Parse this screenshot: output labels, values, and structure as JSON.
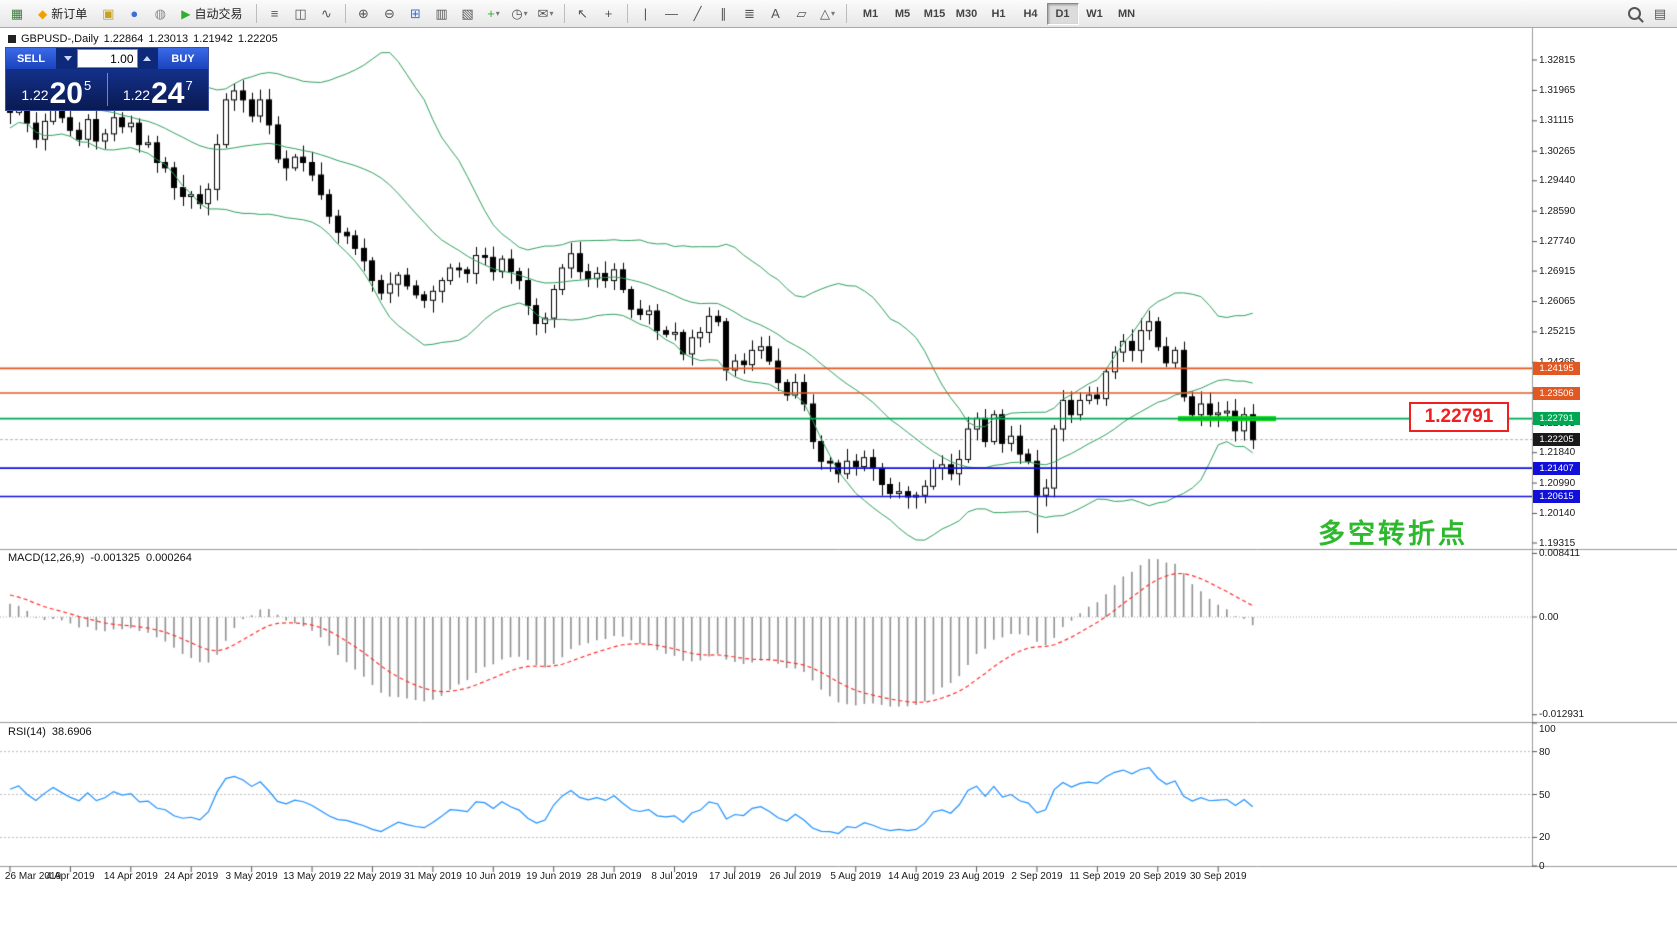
{
  "toolbar": {
    "items": [
      {
        "t": "icon",
        "n": "new-chart-icon",
        "g": "▦",
        "c": "#3b7d3b"
      },
      {
        "t": "button",
        "n": "new-order-button",
        "g": "◆",
        "c": "#f0a000",
        "label": "新订单"
      },
      {
        "t": "icon",
        "n": "chart-profile-icon",
        "g": "▣",
        "c": "#c8a020"
      },
      {
        "t": "icon",
        "n": "market-watch-icon",
        "g": "●",
        "c": "#3a6fd8"
      },
      {
        "t": "icon",
        "n": "data-window-icon",
        "g": "◍",
        "c": "#888888"
      },
      {
        "t": "button",
        "n": "auto-trading-button",
        "g": "▶",
        "c": "#2eaf2e",
        "label": "自动交易"
      },
      {
        "t": "sep"
      },
      {
        "t": "icon",
        "n": "bar-chart-icon",
        "g": "≡",
        "c": "#555555"
      },
      {
        "t": "icon",
        "n": "candlestick-chart-icon",
        "g": "◫",
        "c": "#555555"
      },
      {
        "t": "icon",
        "n": "line-chart-icon",
        "g": "∿",
        "c": "#555555"
      },
      {
        "t": "sep"
      },
      {
        "t": "icon",
        "n": "zoom-in-icon",
        "g": "⊕",
        "c": "#555555"
      },
      {
        "t": "icon",
        "n": "zoom-out-icon",
        "g": "⊖",
        "c": "#555555"
      },
      {
        "t": "icon",
        "n": "grid-icon",
        "g": "⊞",
        "c": "#3a6fd8"
      },
      {
        "t": "icon",
        "n": "tile-windows-icon",
        "g": "▥",
        "c": "#555555"
      },
      {
        "t": "icon",
        "n": "cascade-windows-icon",
        "g": "▧",
        "c": "#555555"
      },
      {
        "t": "icon-drop",
        "n": "add-indicator-icon",
        "g": "+",
        "c": "#2eaf2e"
      },
      {
        "t": "icon-drop",
        "n": "period-icon",
        "g": "◷",
        "c": "#555555"
      },
      {
        "t": "icon-drop",
        "n": "template-icon",
        "g": "✉",
        "c": "#555555"
      },
      {
        "t": "sep"
      },
      {
        "t": "icon",
        "n": "cursor-icon",
        "g": "↖",
        "c": "#555555"
      },
      {
        "t": "icon",
        "n": "crosshair-icon",
        "g": "+",
        "c": "#555555"
      },
      {
        "t": "sep"
      },
      {
        "t": "icon",
        "n": "vertical-line-icon",
        "g": "|",
        "c": "#555555"
      },
      {
        "t": "icon",
        "n": "horizontal-line-icon",
        "g": "—",
        "c": "#555555"
      },
      {
        "t": "icon",
        "n": "trendline-icon",
        "g": "╱",
        "c": "#555555"
      },
      {
        "t": "icon",
        "n": "channel-icon",
        "g": "∥",
        "c": "#555555"
      },
      {
        "t": "icon",
        "n": "fibonacci-icon",
        "g": "≣",
        "c": "#555555"
      },
      {
        "t": "icon",
        "n": "text-icon",
        "g": "A",
        "c": "#555555"
      },
      {
        "t": "icon",
        "n": "arrow-label-icon",
        "g": "▱",
        "c": "#555555"
      },
      {
        "t": "icon-drop",
        "n": "shapes-icon",
        "g": "△",
        "c": "#555555"
      },
      {
        "t": "sep"
      }
    ],
    "timeframes": [
      "M1",
      "M5",
      "M15",
      "M30",
      "H1",
      "H4",
      "D1",
      "W1",
      "MN"
    ],
    "active_timeframe": "D1",
    "right_items": [
      {
        "t": "search",
        "n": "search-icon"
      },
      {
        "t": "icon",
        "n": "quick-settings-icon",
        "g": "▤",
        "c": "#555555"
      }
    ]
  },
  "chart": {
    "title": "GBPUSD-,Daily",
    "ohlc": {
      "open": "1.22864",
      "high": "1.23013",
      "low": "1.21942",
      "close": "1.22205"
    }
  },
  "trade_panel": {
    "sell": "SELL",
    "buy": "BUY",
    "volume": "1.00",
    "sell_pre": "1.22",
    "sell_big": "20",
    "sell_sup": "5",
    "buy_pre": "1.22",
    "buy_big": "24",
    "buy_sup": "7"
  },
  "annotation": {
    "text": "多空转折点",
    "color": "#2EB82E"
  },
  "callout": {
    "text": "1.22791"
  },
  "chart_data": {
    "type": "candlestick",
    "symbol": "GBPUSD",
    "timeframe": "Daily",
    "x_labels": [
      "26 Mar 2019",
      "4 Apr 2019",
      "14 Apr 2019",
      "24 Apr 2019",
      "3 May 2019",
      "13 May 2019",
      "22 May 2019",
      "31 May 2019",
      "10 Jun 2019",
      "19 Jun 2019",
      "28 Jun 2019",
      "8 Jul 2019",
      "17 Jul 2019",
      "26 Jul 2019",
      "5 Aug 2019",
      "14 Aug 2019",
      "23 Aug 2019",
      "2 Sep 2019",
      "11 Sep 2019",
      "20 Sep 2019",
      "30 Sep 2019"
    ],
    "candles_per_label": 7,
    "pre_closes": [
      1.305,
      1.3085,
      1.312,
      1.3175,
      1.3235,
      1.328,
      1.3305,
      1.326,
      1.3205,
      1.323,
      1.3195,
      1.316,
      1.32,
      1.324,
      1.3215,
      1.3185,
      1.315,
      1.317,
      1.32,
      1.318
    ],
    "closes": [
      1.3135,
      1.316,
      1.3105,
      1.306,
      1.311,
      1.3155,
      1.312,
      1.3085,
      1.306,
      1.3115,
      1.3055,
      1.3075,
      1.312,
      1.3095,
      1.3105,
      1.3045,
      1.305,
      1.2995,
      1.298,
      1.2925,
      1.29,
      1.2905,
      1.288,
      1.292,
      1.3045,
      1.317,
      1.3195,
      1.317,
      1.3125,
      1.317,
      1.31,
      1.3005,
      1.298,
      1.301,
      1.2995,
      1.296,
      1.2905,
      1.2845,
      1.28,
      1.279,
      1.2755,
      1.272,
      1.2665,
      1.263,
      1.2655,
      1.268,
      1.265,
      1.2625,
      1.261,
      1.2635,
      1.2665,
      1.27,
      1.2695,
      1.2685,
      1.2735,
      1.273,
      1.269,
      1.2725,
      1.269,
      1.2665,
      1.2595,
      1.2545,
      1.256,
      1.264,
      1.27,
      1.274,
      1.269,
      1.267,
      1.2685,
      1.2665,
      1.2695,
      1.264,
      1.2585,
      1.257,
      1.258,
      1.2525,
      1.2515,
      1.252,
      1.246,
      1.2505,
      1.252,
      1.2565,
      1.255,
      1.2415,
      1.244,
      1.243,
      1.247,
      1.248,
      1.244,
      1.238,
      1.2345,
      1.238,
      1.232,
      1.2215,
      1.216,
      1.2155,
      1.2125,
      1.216,
      1.2145,
      1.217,
      1.214,
      1.2095,
      1.207,
      1.2075,
      1.206,
      1.2065,
      1.209,
      1.214,
      1.215,
      1.2125,
      1.2165,
      1.225,
      1.228,
      1.2215,
      1.229,
      1.221,
      1.223,
      1.218,
      1.216,
      1.2065,
      1.2085,
      1.225,
      1.233,
      1.229,
      1.233,
      1.2345,
      1.2335,
      1.241,
      1.2465,
      1.2495,
      1.247,
      1.2525,
      1.255,
      1.248,
      1.2435,
      1.247,
      1.234,
      1.229,
      1.232,
      1.229,
      1.2295,
      1.23,
      1.2245,
      1.229,
      1.222
    ],
    "wick_overrides": [
      {
        "i": 26,
        "high": 1.3215
      },
      {
        "i": 83,
        "low": 1.2385
      },
      {
        "i": 119,
        "low": 1.1959
      },
      {
        "i": 144,
        "low": 1.2194
      }
    ],
    "price_axis": {
      "labels": [
        "1.32815",
        "1.31965",
        "1.31115",
        "1.30265",
        "1.29440",
        "1.28590",
        "1.27740",
        "1.26915",
        "1.26065",
        "1.25215",
        "1.24365",
        "1.23515",
        "1.22665",
        "1.21840",
        "1.20990",
        "1.20140",
        "1.19315"
      ],
      "max": 1.32815,
      "min": 1.19315
    },
    "levels": [
      {
        "price": 1.24195,
        "label": "1.24195",
        "color": "#E25822",
        "type": "resistance-upper"
      },
      {
        "price": 1.23506,
        "label": "1.23506",
        "color": "#E25822",
        "type": "resistance-lower"
      },
      {
        "price": 1.22791,
        "label": "1.22791",
        "color": "#00A651",
        "type": "pivot",
        "highlight": true
      },
      {
        "price": 1.22205,
        "label": "1.22205",
        "color": "#1a1a1a",
        "type": "current"
      },
      {
        "price": 1.21407,
        "label": "1.21407",
        "color": "#1010D8",
        "type": "support-upper"
      },
      {
        "price": 1.20615,
        "label": "1.20615",
        "color": "#1010D8",
        "type": "support-lower"
      }
    ],
    "highlight_color": "#00DD00",
    "indicators": {
      "bollinger": {
        "period": 20,
        "deviation": 2,
        "color": "#2E9E5B"
      },
      "macd": {
        "label": "MACD(12,26,9)",
        "value_main": "-0.001325",
        "value_signal": "0.000264",
        "axis_max": "0.008411",
        "axis_zero": "0.00",
        "axis_min": "-0.012931",
        "hist_color": "#909090",
        "signal_color": "#FF3030"
      },
      "rsi": {
        "label": "RSI(14)",
        "value": "38.6906",
        "axis": [
          100,
          80,
          50,
          20,
          0
        ],
        "levels": [
          80,
          50,
          20
        ],
        "color": "#1E90FF"
      }
    }
  }
}
